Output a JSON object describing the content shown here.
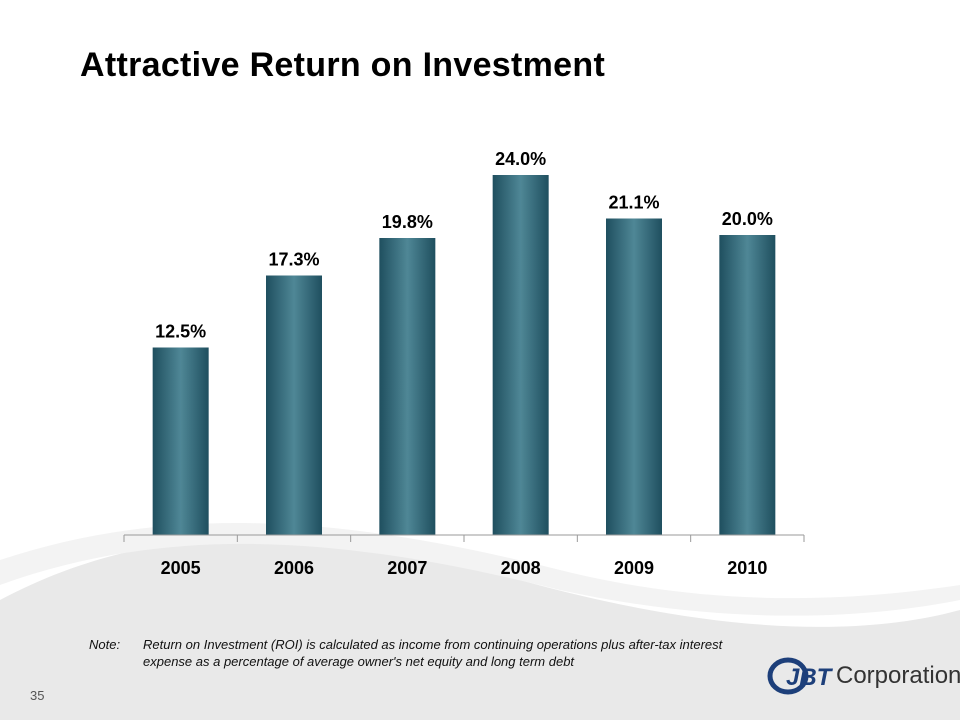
{
  "slide": {
    "title": "Attractive Return on Investment",
    "page_number": "35",
    "note_label": "Note:",
    "note_text": "Return on Investment (ROI) is calculated as income from continuing operations plus after-tax interest expense as a percentage of average owner's net equity and long term debt",
    "logo_mark": "JBT",
    "logo_word": "Corporation"
  },
  "colors": {
    "bar_dark": "#1f4f5f",
    "bar_light": "#4f8796",
    "axis": "#9a9a9a",
    "swoosh": "#e9e9e9"
  },
  "chart_data": {
    "type": "bar",
    "title": "",
    "xlabel": "",
    "ylabel": "",
    "categories": [
      "2005",
      "2006",
      "2007",
      "2008",
      "2009",
      "2010"
    ],
    "values": [
      12.5,
      17.3,
      19.8,
      24.0,
      21.1,
      20.0
    ],
    "value_labels": [
      "12.5%",
      "17.3%",
      "19.8%",
      "24.0%",
      "21.1%",
      "20.0%"
    ],
    "ylim": [
      0,
      24.0
    ],
    "grid": false,
    "legend": "none"
  }
}
